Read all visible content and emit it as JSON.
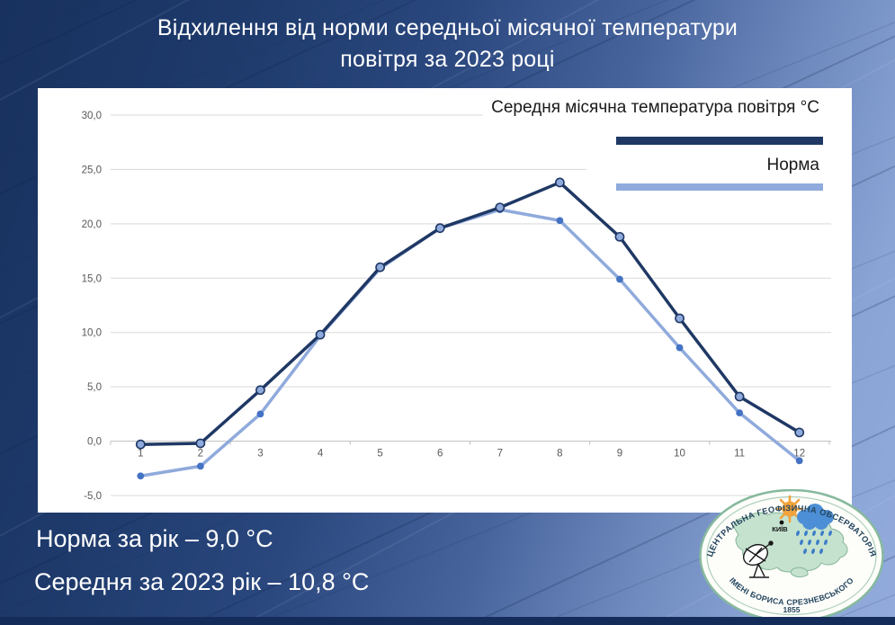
{
  "title": {
    "line1": "Відхилення від норми середньої місячної температури",
    "line2": "повітря за 2023 році"
  },
  "chart_data": {
    "type": "line",
    "categories": [
      "1",
      "2",
      "3",
      "4",
      "5",
      "6",
      "7",
      "8",
      "9",
      "10",
      "11",
      "12"
    ],
    "series": [
      {
        "name": "Середня місячна температура повітря °C",
        "color": "#1F3864",
        "marker_fill": "#8FAADC",
        "marker_stroke": "#1F3864",
        "values": [
          -0.3,
          -0.2,
          4.7,
          9.8,
          16.0,
          19.6,
          21.5,
          23.8,
          18.8,
          11.3,
          4.1,
          0.8
        ]
      },
      {
        "name": "Норма",
        "color": "#8FAADC",
        "marker_fill": "#4472C4",
        "marker_stroke": "none",
        "values": [
          -3.2,
          -2.3,
          2.5,
          9.7,
          15.9,
          19.6,
          21.3,
          20.3,
          14.9,
          8.6,
          2.6,
          -1.8
        ]
      }
    ],
    "ylim": [
      -5,
      30
    ],
    "ytick_values": [
      30,
      25,
      20,
      15,
      10,
      5,
      0,
      -5
    ],
    "ytick_labels": [
      "30,0",
      "25,0",
      "20,0",
      "15,0",
      "10,0",
      "5,0",
      "0,0",
      "-5,0"
    ],
    "grid": true,
    "legend_position": "top-right",
    "gridline_color": "#D9D9D9",
    "axis_color": "#BFBFBF",
    "tick_label_color": "#595959"
  },
  "footer": {
    "line1": "Норма за рік – 9,0 °C",
    "line2": "Середня за 2023 рік – 10,8 °C"
  },
  "logo": {
    "top_text": "ЦЕНТРАЛЬНА ГЕОФІЗИЧНА ОБСЕРВАТОРІЯ",
    "bottom_text": "ІМЕНІ БОРИСА СРЕЗНЕВСЬКОГО",
    "year": "1855",
    "city_label": "КИЇВ"
  }
}
